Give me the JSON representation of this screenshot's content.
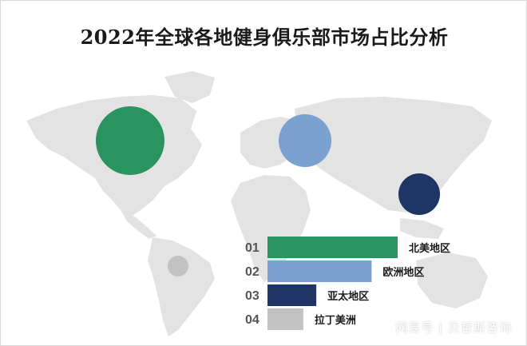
{
  "title": "2022年全球各地健身俱乐部市场占比分析",
  "watermark": "网易号 | 贝哲斯咨询",
  "colors": {
    "north_america": "#2a9460",
    "europe": "#7aa1cf",
    "asia_pacific": "#1f3566",
    "latin_america": "#c2c2c2",
    "map": "#e3e3e3"
  },
  "chart_data": {
    "type": "bar",
    "orientation": "horizontal",
    "categories": [
      "北美地区",
      "欧洲地区",
      "亚太地区",
      "拉丁美洲"
    ],
    "ranks": [
      "01",
      "02",
      "03",
      "04"
    ],
    "values": [
      40,
      32,
      15,
      11
    ],
    "xlim": [
      0,
      40
    ],
    "title": "2022年全球各地健身俱乐部市场占比分析",
    "grid": false,
    "legend": "none"
  }
}
